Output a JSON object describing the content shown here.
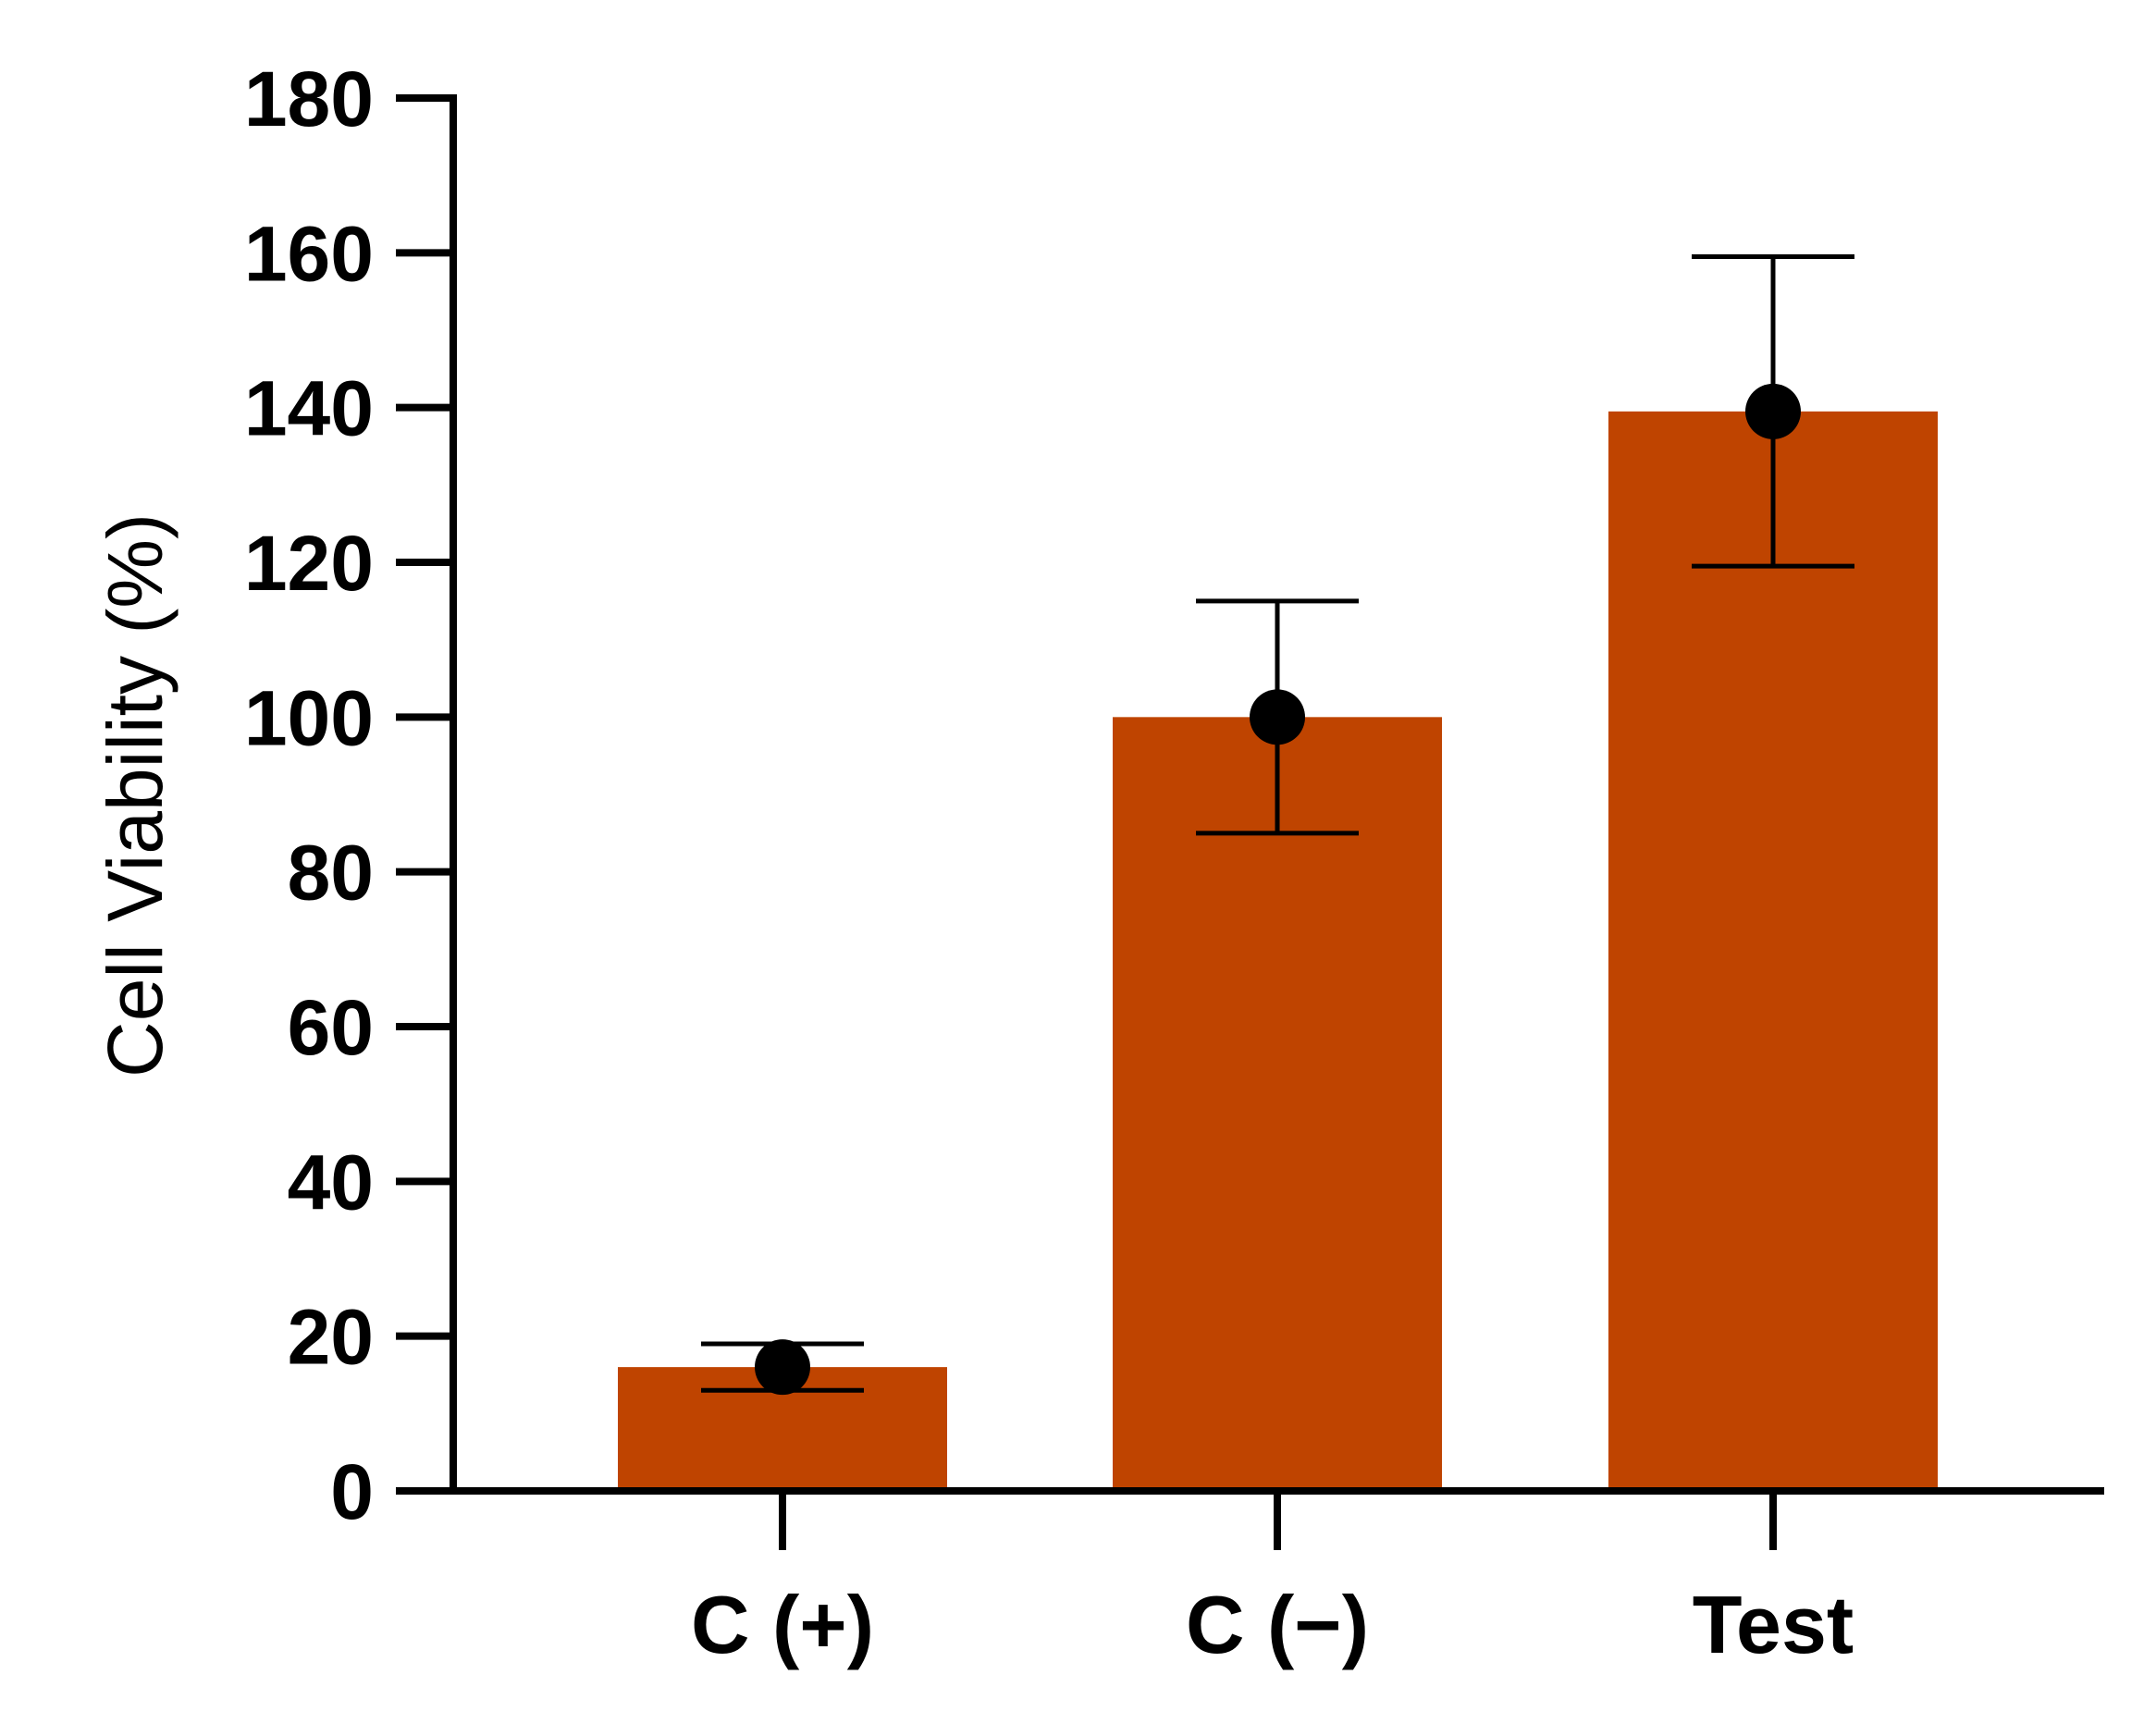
{
  "chart_data": {
    "type": "bar",
    "title": "",
    "xlabel": "",
    "ylabel": "Cell Viability (%)",
    "ylim": [
      0,
      180
    ],
    "yticks": [
      0,
      20,
      40,
      60,
      80,
      100,
      120,
      140,
      160,
      180
    ],
    "ytick_labels": [
      "0",
      "20",
      "40",
      "60",
      "80",
      "100",
      "120",
      "140",
      "160",
      "180"
    ],
    "categories": [
      "C (+)",
      "C (−)",
      "Test"
    ],
    "values": [
      16,
      100,
      139.5
    ],
    "points": [
      16,
      100,
      139.5
    ],
    "error_low": [
      13,
      85,
      119.5
    ],
    "error_high": [
      19,
      115,
      159.5
    ],
    "grid": false,
    "legend": "none",
    "colors": {
      "bar": "#bf4400",
      "point": "#000000",
      "axis": "#000000"
    }
  }
}
